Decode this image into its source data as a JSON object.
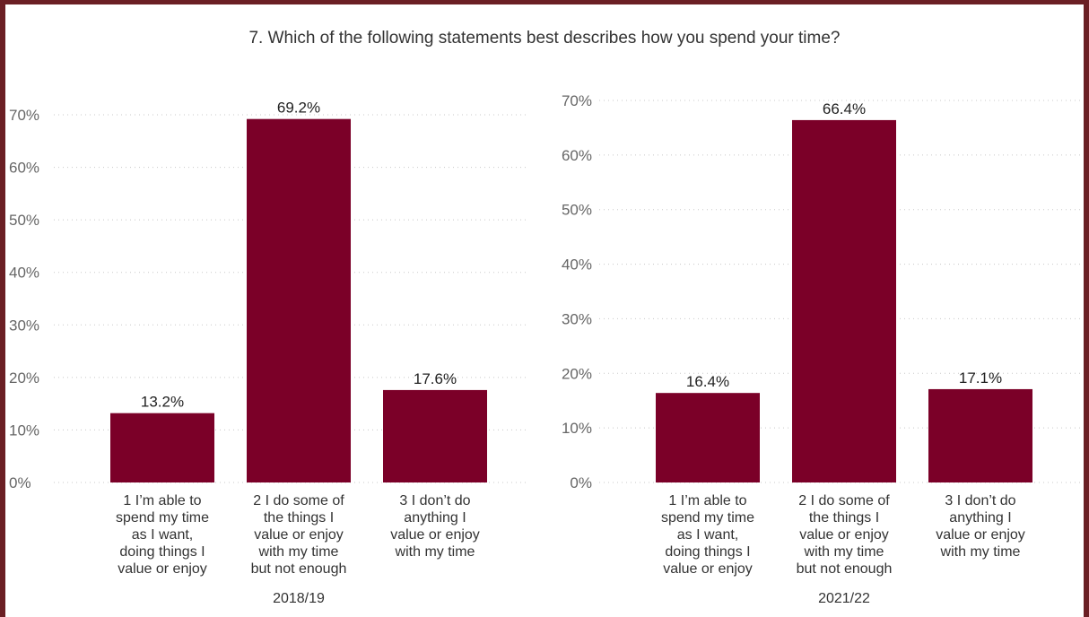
{
  "page_title": "7. Which of the following statements best describes how you spend your time?",
  "colors": {
    "bar": "#7b0028",
    "frame": "#6b1f24"
  },
  "chart_data": [
    {
      "type": "bar",
      "title": "",
      "ylabel": "",
      "xlabel": "2018/19",
      "ylim": [
        0,
        70
      ],
      "yticks": [
        "0%",
        "10%",
        "20%",
        "30%",
        "40%",
        "50%",
        "60%",
        "70%"
      ],
      "categories": [
        [
          "1 I’m able to",
          "spend my time",
          "as I want,",
          "doing things I",
          "value or enjoy"
        ],
        [
          "2 I do some of",
          "the things I",
          "value or enjoy",
          "with my time",
          "but not enough"
        ],
        [
          "3 I don’t do",
          "anything I",
          "value or enjoy",
          "with my time"
        ]
      ],
      "values": [
        13.2,
        69.2,
        17.6
      ],
      "data_labels": [
        "13.2%",
        "69.2%",
        "17.6%"
      ],
      "grid": true
    },
    {
      "type": "bar",
      "title": "",
      "ylabel": "",
      "xlabel": "2021/22",
      "ylim": [
        0,
        70
      ],
      "yticks": [
        "0%",
        "10%",
        "20%",
        "30%",
        "40%",
        "50%",
        "60%",
        "70%"
      ],
      "categories": [
        [
          "1 I’m able to",
          "spend my time",
          "as I want,",
          "doing things I",
          "value or enjoy"
        ],
        [
          "2 I do some of",
          "the things I",
          "value or enjoy",
          "with my time",
          "but not enough"
        ],
        [
          "3 I don’t do",
          "anything I",
          "value or enjoy",
          "with my time"
        ]
      ],
      "values": [
        16.4,
        66.4,
        17.1
      ],
      "data_labels": [
        "16.4%",
        "66.4%",
        "17.1%"
      ],
      "grid": true
    }
  ]
}
